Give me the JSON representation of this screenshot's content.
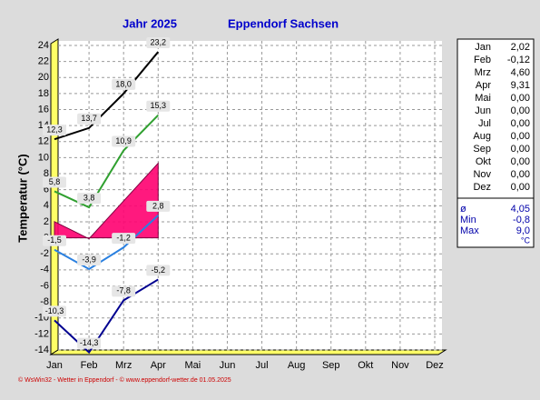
{
  "chart_data": {
    "type": "line",
    "title": "Jahr  2025",
    "subtitle": "Eppendorf Sachsen",
    "y_label": "Temperatur (°C)",
    "footer": "© WsWin32 - Wetter in Eppendorf - © www.eppendorf-wetter.de  01.05.2025",
    "categories": [
      "Jan",
      "Feb",
      "Mrz",
      "Apr",
      "Mai",
      "Jun",
      "Jul",
      "Aug",
      "Sep",
      "Okt",
      "Nov",
      "Dez"
    ],
    "ylim": [
      -14,
      24
    ],
    "yticks": [
      -14,
      -12,
      -10,
      -8,
      -6,
      -4,
      -2,
      0,
      2,
      4,
      6,
      8,
      10,
      12,
      14,
      16,
      18,
      20,
      22,
      24
    ],
    "grid": true,
    "series": [
      {
        "color": "#000000",
        "values": [
          12.3,
          13.7,
          18.0,
          23.2,
          null,
          null,
          null,
          null,
          null,
          null,
          null,
          null
        ],
        "value_labels": [
          "12,3",
          "13,7",
          "18,0",
          "23,2",
          null,
          null,
          null,
          null,
          null,
          null,
          null,
          null
        ]
      },
      {
        "color": "#30a030",
        "values": [
          5.8,
          3.8,
          10.9,
          15.3,
          null,
          null,
          null,
          null,
          null,
          null,
          null,
          null
        ],
        "value_labels": [
          "5,8",
          "3,8",
          "10,9",
          "15,3",
          null,
          null,
          null,
          null,
          null,
          null,
          null,
          null
        ]
      },
      {
        "type": "area",
        "color": "#ff0070",
        "values": [
          2.02,
          -0.12,
          4.6,
          9.31,
          null,
          null,
          null,
          null,
          null,
          null,
          null,
          null
        ]
      },
      {
        "color": "#2a80e0",
        "values": [
          -1.5,
          -3.9,
          -1.2,
          2.8,
          null,
          null,
          null,
          null,
          null,
          null,
          null,
          null
        ],
        "value_labels": [
          "-1,5",
          "-3,9",
          "-1,2",
          "2,8",
          null,
          null,
          null,
          null,
          null,
          null,
          null,
          null
        ]
      },
      {
        "color": "#000090",
        "values": [
          -10.3,
          -14.3,
          -7.8,
          -5.2,
          null,
          null,
          null,
          null,
          null,
          null,
          null,
          null
        ],
        "value_labels": [
          "-10,3",
          "-14,3",
          "-7,8",
          "-5,2",
          null,
          null,
          null,
          null,
          null,
          null,
          null,
          null
        ]
      }
    ],
    "table": {
      "rows": [
        [
          "Jan",
          "2,02"
        ],
        [
          "Feb",
          "-0,12"
        ],
        [
          "Mrz",
          "4,60"
        ],
        [
          "Apr",
          "9,31"
        ],
        [
          "Mai",
          "0,00"
        ],
        [
          "Jun",
          "0,00"
        ],
        [
          "Jul",
          "0,00"
        ],
        [
          "Aug",
          "0,00"
        ],
        [
          "Sep",
          "0,00"
        ],
        [
          "Okt",
          "0,00"
        ],
        [
          "Nov",
          "0,00"
        ],
        [
          "Dez",
          "0,00"
        ]
      ],
      "stats": [
        [
          "ø",
          "4,05"
        ],
        [
          "Min",
          "-0,8"
        ],
        [
          "Max",
          "9,0"
        ]
      ],
      "unit": "°C"
    }
  }
}
